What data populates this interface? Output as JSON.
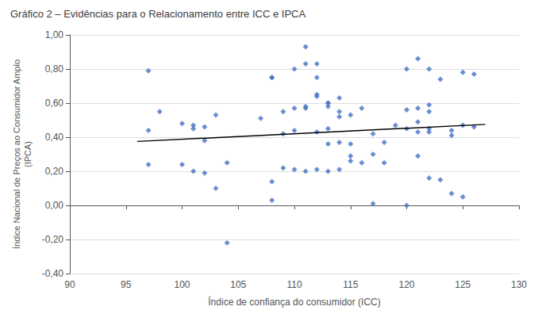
{
  "chart_data": {
    "type": "scatter",
    "title": "Gráfico 2 – Evidências para o Relacionamento entre ICC e IPCA",
    "xlabel": "Índice de confiança do consumidor (ICC)",
    "ylabel": "Índice Nacional de Preços ao Consumidor Amplo\n(IPCA)",
    "xlim": [
      90,
      130
    ],
    "ylim": [
      -0.4,
      1.0
    ],
    "xticks": [
      90,
      95,
      100,
      105,
      110,
      115,
      120,
      125,
      130
    ],
    "yticks": [
      {
        "value": -0.4,
        "label": "-0,40"
      },
      {
        "value": -0.2,
        "label": "-0,20"
      },
      {
        "value": 0.0,
        "label": "0,00"
      },
      {
        "value": 0.2,
        "label": "0,20"
      },
      {
        "value": 0.4,
        "label": "0,40"
      },
      {
        "value": 0.6,
        "label": "0,60"
      },
      {
        "value": 0.8,
        "label": "0,80"
      },
      {
        "value": 1.0,
        "label": "1,00"
      }
    ],
    "grid": true,
    "series": [
      {
        "type": "scatter",
        "marker": "diamond",
        "color": "#4472C4",
        "x": [
          97,
          97,
          97,
          98,
          100,
          100,
          101,
          101,
          101,
          102,
          102,
          102,
          103,
          103,
          104,
          107,
          108,
          108,
          108,
          108,
          109,
          109,
          109,
          110,
          110,
          110,
          110,
          111,
          111,
          111,
          111,
          111,
          112,
          112,
          112,
          112,
          112,
          112,
          113,
          113,
          113,
          113,
          113,
          113,
          114,
          114,
          114,
          114,
          114,
          115,
          115,
          115,
          115,
          116,
          116,
          117,
          117,
          117,
          118,
          118,
          119,
          120,
          120,
          120,
          120,
          121,
          121,
          121,
          121,
          121,
          122,
          122,
          122,
          122,
          122,
          122,
          123,
          123,
          124,
          124,
          124,
          125,
          125,
          125,
          126,
          126
        ],
        "values": [
          0.79,
          0.44,
          0.24,
          0.55,
          0.48,
          0.24,
          0.45,
          0.47,
          0.2,
          0.46,
          0.38,
          0.19,
          0.1,
          0.53,
          0.25,
          0.51,
          0.75,
          0.75,
          0.14,
          0.03,
          0.55,
          0.42,
          0.22,
          0.8,
          0.57,
          0.44,
          0.21,
          0.93,
          0.83,
          0.58,
          0.57,
          0.2,
          0.83,
          0.75,
          0.65,
          0.64,
          0.43,
          0.21,
          0.6,
          0.6,
          0.58,
          0.45,
          0.36,
          0.2,
          0.63,
          0.55,
          0.52,
          0.37,
          0.21,
          0.53,
          0.36,
          0.29,
          0.26,
          0.57,
          0.25,
          0.42,
          0.3,
          0.01,
          0.37,
          0.25,
          0.47,
          0.8,
          0.56,
          0.45,
          0.0,
          0.86,
          0.57,
          0.49,
          0.43,
          0.29,
          0.8,
          0.59,
          0.55,
          0.45,
          0.43,
          0.16,
          0.74,
          0.15,
          0.44,
          0.41,
          0.07,
          0.78,
          0.47,
          0.05,
          0.46,
          0.77
        ]
      },
      {
        "type": "scatter",
        "marker": "diamond",
        "color": "#4472C4",
        "x": [
          104
        ],
        "values": [
          -0.22
        ]
      },
      {
        "type": "line",
        "color": "#000000",
        "x": [
          96,
          127
        ],
        "values": [
          0.375,
          0.475
        ]
      }
    ]
  }
}
